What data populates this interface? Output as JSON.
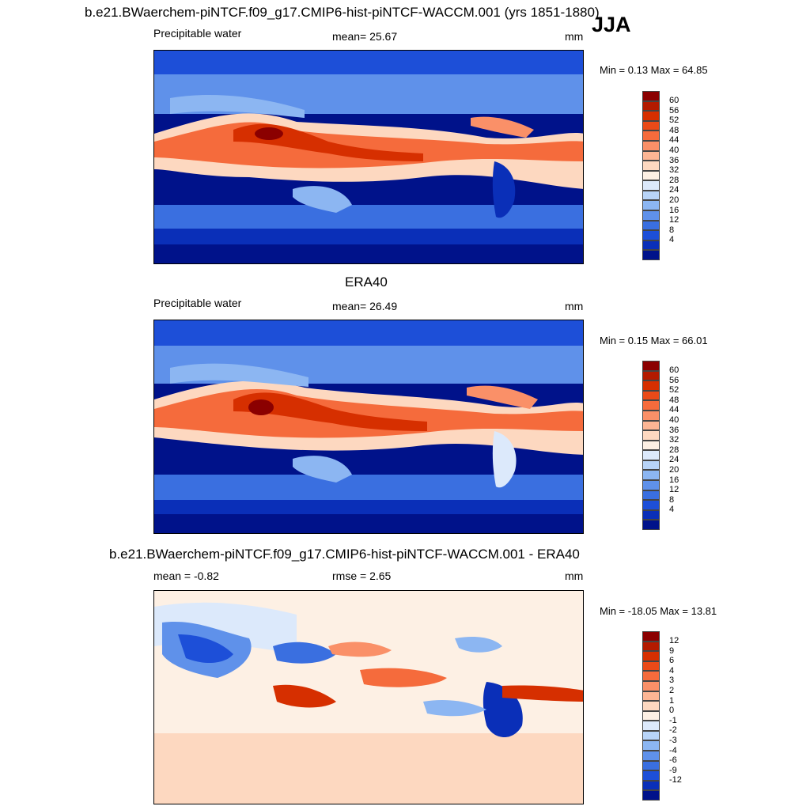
{
  "season": "JJA",
  "panels": [
    {
      "title": "b.e21.BWaerchem-piNTCF.f09_g17.CMIP6-hist-piNTCF-WACCM.001 (yrs 1851-1880)",
      "left_label": "Precipitable water",
      "center_label": "mean=  25.67",
      "units": "mm",
      "minmax": "Min =   0.13 Max =  64.85",
      "map": "model precipitable water, JJA"
    },
    {
      "title": "ERA40",
      "left_label": "Precipitable water",
      "center_label": "mean=  26.49",
      "units": "mm",
      "minmax": "Min =   0.15 Max =  66.01",
      "map": "ERA40 precipitable water, JJA"
    },
    {
      "title": "b.e21.BWaerchem-piNTCF.f09_g17.CMIP6-hist-piNTCF-WACCM.001 - ERA40",
      "left_label": "mean =  -0.82",
      "center_label": "rmse =   2.65",
      "units": "mm",
      "minmax": "Min = -18.05 Max =  13.81",
      "map": "difference, model minus ERA40"
    }
  ],
  "colorbars": {
    "abs": {
      "labels": [
        "60",
        "56",
        "52",
        "48",
        "44",
        "40",
        "36",
        "32",
        "28",
        "24",
        "20",
        "16",
        "12",
        "8",
        "4"
      ],
      "colors": [
        "#8b0000",
        "#b31a00",
        "#d62f00",
        "#ea4a18",
        "#f56b3c",
        "#fa9068",
        "#fcb594",
        "#fdd8c0",
        "#fdf0e4",
        "#dce9fb",
        "#b8d4f8",
        "#8cb6f2",
        "#5f91ea",
        "#3a6fe0",
        "#1d4fd8",
        "#0a2fb8",
        "#00128a"
      ]
    },
    "diff": {
      "labels": [
        "12",
        "9",
        "6",
        "4",
        "3",
        "2",
        "1",
        "0",
        "-1",
        "-2",
        "-3",
        "-4",
        "-6",
        "-9",
        "-12"
      ],
      "colors": [
        "#8b0000",
        "#b31a00",
        "#d62f00",
        "#ea4a18",
        "#f56b3c",
        "#fa9068",
        "#fcb594",
        "#fdd8c0",
        "#fdf0e4",
        "#dce9fb",
        "#b8d4f8",
        "#8cb6f2",
        "#5f91ea",
        "#3a6fe0",
        "#1d4fd8",
        "#0a2fb8",
        "#00128a"
      ]
    }
  }
}
